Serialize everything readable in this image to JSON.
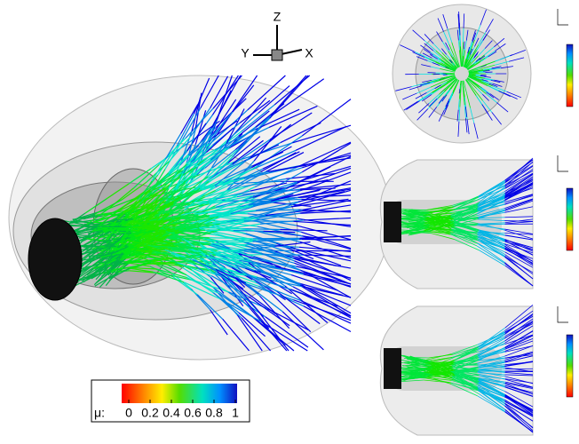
{
  "main_view": {
    "axes": {
      "z": "Z",
      "y": "Y",
      "x": "X"
    },
    "colorbar": {
      "label": "μ:",
      "ticks": [
        0,
        0.2,
        0.4,
        0.6,
        0.8,
        1
      ]
    }
  }
}
